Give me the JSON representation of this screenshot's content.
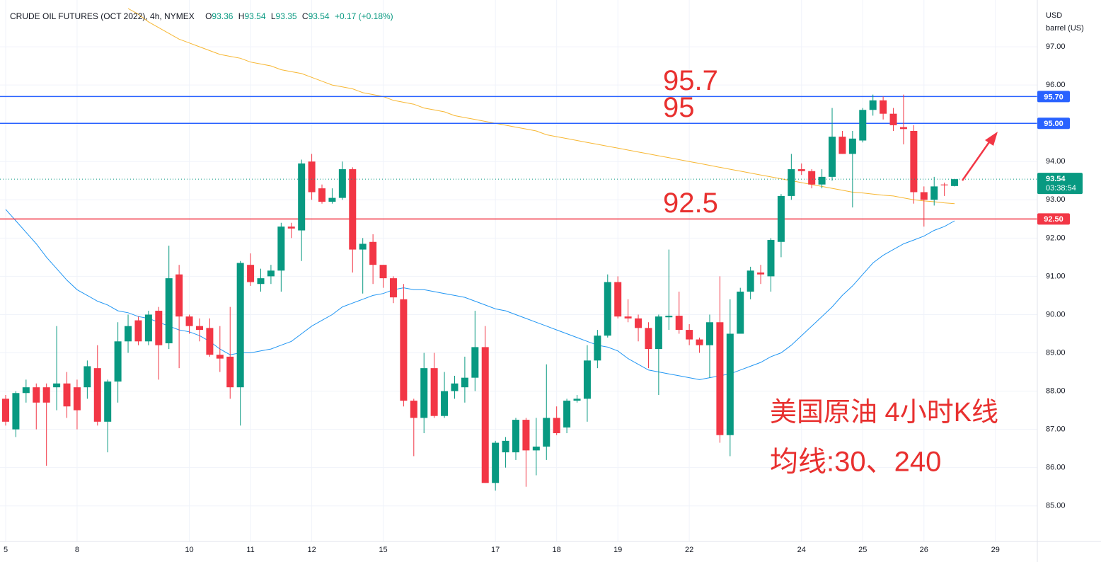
{
  "chart_data": {
    "type": "candlestick",
    "title": "CRUDE OIL FUTURES (OCT 2022), 4h, NYMEX",
    "legend": [
      {
        "label": "O",
        "value": "93.36"
      },
      {
        "label": "H",
        "value": "93.54"
      },
      {
        "label": "L",
        "value": "93.35"
      },
      {
        "label": "C",
        "value": "93.54"
      }
    ],
    "change": "+0.17 (+0.18%)",
    "y_unit": [
      "USD",
      "barrel (US)"
    ],
    "categories": [
      "5",
      null,
      null,
      null,
      null,
      null,
      null,
      "8",
      null,
      null,
      null,
      null,
      null,
      null,
      null,
      null,
      null,
      null,
      "10",
      null,
      null,
      null,
      null,
      null,
      "11",
      null,
      null,
      null,
      null,
      null,
      "12",
      null,
      null,
      null,
      null,
      null,
      null,
      "15",
      null,
      null,
      null,
      null,
      null,
      null,
      null,
      null,
      null,
      null,
      "17",
      null,
      null,
      null,
      null,
      null,
      "18",
      null,
      null,
      null,
      null,
      null,
      "19",
      null,
      null,
      null,
      null,
      null,
      null,
      "22",
      null,
      null,
      null,
      null,
      null,
      null,
      null,
      null,
      null,
      null,
      "24",
      null,
      null,
      null,
      null,
      null,
      "25",
      null,
      null,
      null,
      null,
      null,
      "26",
      null,
      null,
      null,
      null,
      null,
      null,
      "29",
      null,
      null,
      null
    ],
    "open": [
      87.8,
      87.0,
      87.95,
      88.1,
      88.1,
      88.1,
      88.2,
      88.1,
      88.1,
      88.6,
      87.2,
      88.25,
      89.3,
      89.85,
      89.3,
      90.1,
      89.25,
      91.05,
      89.95,
      89.7,
      89.65,
      88.95,
      88.9,
      88.1,
      91.3,
      90.8,
      91.0,
      91.15,
      92.3,
      92.2,
      94.0,
      93.3,
      92.95,
      93.05,
      93.8,
      91.7,
      91.9,
      91.3,
      90.95,
      90.4,
      87.75,
      87.3,
      88.6,
      87.35,
      88.0,
      88.1,
      88.35,
      89.15,
      85.6,
      86.4,
      86.4,
      87.25,
      86.45,
      86.55,
      87.3,
      87.05,
      87.75,
      87.8,
      88.8,
      89.45,
      90.85,
      89.95,
      89.9,
      89.65,
      89.1,
      89.93,
      89.97,
      89.6,
      89.35,
      89.2,
      89.8,
      86.85,
      89.5,
      90.6,
      91.1,
      91.0,
      91.9,
      93.1,
      93.8,
      93.75,
      93.4,
      93.6,
      94.65,
      94.2,
      94.55,
      95.35,
      95.6,
      95.25,
      94.9,
      94.8,
      93.2,
      93.0,
      93.4,
      93.36,
      null,
      null,
      null,
      null,
      null,
      null,
      null
    ],
    "high": [
      87.9,
      88.0,
      88.3,
      88.2,
      88.2,
      89.7,
      88.5,
      88.3,
      88.8,
      89.2,
      88.3,
      89.8,
      90.0,
      89.95,
      90.1,
      90.2,
      91.8,
      91.3,
      90.0,
      89.9,
      89.9,
      89.7,
      90.2,
      91.4,
      91.6,
      91.2,
      91.3,
      92.4,
      92.4,
      94.05,
      94.2,
      93.4,
      93.3,
      94.0,
      93.85,
      92.0,
      92.1,
      91.3,
      91.0,
      90.8,
      87.8,
      89.0,
      89.0,
      88.5,
      88.4,
      88.9,
      90.1,
      89.7,
      86.7,
      86.8,
      87.3,
      87.3,
      87.3,
      88.7,
      87.6,
      87.8,
      87.9,
      89.2,
      89.6,
      91.05,
      91.0,
      90.4,
      90.0,
      89.8,
      90.0,
      91.7,
      90.6,
      89.75,
      89.4,
      90.0,
      91.0,
      90.4,
      90.7,
      91.25,
      91.3,
      92.0,
      93.15,
      94.2,
      93.95,
      93.8,
      93.8,
      95.4,
      94.8,
      94.8,
      95.4,
      95.75,
      95.7,
      95.4,
      95.75,
      94.95,
      93.35,
      93.6,
      93.45,
      93.54,
      null,
      null,
      null,
      null,
      null,
      null,
      null
    ],
    "low": [
      87.1,
      86.8,
      87.7,
      87.0,
      86.05,
      87.5,
      87.3,
      87.0,
      87.8,
      87.1,
      86.4,
      87.7,
      89.0,
      89.2,
      89.2,
      88.3,
      89.1,
      88.6,
      89.5,
      89.3,
      88.9,
      88.5,
      87.8,
      87.1,
      90.75,
      90.6,
      90.8,
      90.6,
      92.0,
      91.4,
      93.0,
      92.9,
      92.9,
      93.0,
      91.1,
      90.55,
      90.8,
      90.7,
      90.3,
      87.6,
      86.3,
      86.9,
      87.3,
      87.3,
      87.8,
      87.7,
      88.0,
      85.6,
      85.4,
      86.0,
      86.2,
      85.5,
      85.8,
      86.2,
      86.85,
      86.9,
      87.7,
      87.2,
      88.6,
      89.4,
      89.9,
      89.8,
      89.3,
      88.6,
      87.9,
      89.6,
      89.5,
      89.2,
      89.0,
      88.35,
      86.65,
      86.3,
      89.5,
      90.4,
      90.8,
      90.6,
      91.5,
      93.0,
      93.65,
      93.3,
      93.3,
      93.5,
      94.2,
      92.8,
      94.5,
      95.2,
      95.1,
      94.8,
      94.45,
      92.9,
      92.3,
      92.85,
      93.1,
      93.35,
      null,
      null,
      null,
      null,
      null,
      null,
      null
    ],
    "close": [
      87.2,
      87.95,
      88.1,
      87.7,
      87.7,
      88.2,
      87.6,
      87.5,
      88.65,
      87.2,
      88.25,
      89.3,
      89.7,
      89.3,
      90.0,
      89.2,
      90.95,
      89.95,
      89.7,
      89.6,
      88.95,
      88.85,
      88.1,
      91.35,
      90.85,
      90.95,
      91.15,
      92.3,
      92.25,
      93.95,
      93.2,
      92.95,
      93.05,
      93.8,
      91.7,
      91.85,
      91.3,
      90.95,
      90.45,
      87.75,
      87.3,
      88.6,
      87.35,
      88.0,
      88.2,
      88.35,
      89.15,
      85.6,
      86.65,
      86.7,
      87.25,
      86.45,
      86.55,
      87.3,
      86.9,
      87.75,
      87.8,
      88.8,
      89.45,
      90.85,
      89.95,
      89.9,
      89.65,
      89.1,
      89.95,
      89.97,
      89.6,
      89.35,
      89.2,
      89.8,
      86.85,
      89.5,
      90.6,
      91.15,
      91.05,
      91.95,
      93.1,
      93.8,
      93.75,
      93.4,
      93.6,
      94.65,
      94.2,
      94.6,
      95.35,
      95.6,
      95.25,
      94.95,
      94.85,
      93.2,
      93.0,
      93.35,
      93.38,
      93.54,
      null,
      null,
      null,
      null,
      null,
      null,
      null
    ],
    "up_color": "#089981",
    "down_color": "#f23645",
    "lines": [
      {
        "color": "#f7b733",
        "values": [
          null,
          null,
          null,
          null,
          null,
          null,
          null,
          null,
          null,
          null,
          null,
          null,
          98.0,
          97.85,
          97.65,
          97.5,
          97.35,
          97.2,
          97.1,
          97.0,
          96.9,
          96.8,
          96.75,
          96.7,
          96.6,
          96.55,
          96.5,
          96.4,
          96.35,
          96.3,
          96.2,
          96.1,
          96.0,
          95.95,
          95.9,
          95.8,
          95.75,
          95.7,
          95.6,
          95.55,
          95.5,
          95.4,
          95.35,
          95.3,
          95.2,
          95.15,
          95.1,
          95.05,
          95.0,
          94.95,
          94.9,
          94.85,
          94.8,
          94.7,
          94.65,
          94.6,
          94.55,
          94.5,
          94.45,
          94.4,
          94.35,
          94.3,
          94.25,
          94.2,
          94.15,
          94.1,
          94.05,
          94.0,
          93.95,
          93.9,
          93.85,
          93.8,
          93.75,
          93.7,
          93.65,
          93.6,
          93.55,
          93.5,
          93.45,
          93.4,
          93.35,
          93.3,
          93.25,
          93.2,
          93.18,
          93.15,
          93.12,
          93.1,
          93.05,
          93.0,
          92.97,
          92.95,
          92.92,
          92.9,
          null,
          null,
          null,
          null,
          null,
          null,
          null
        ]
      },
      {
        "color": "#2196f3",
        "values": [
          92.75,
          92.45,
          92.15,
          91.85,
          91.5,
          91.2,
          90.9,
          90.65,
          90.5,
          90.35,
          90.25,
          90.1,
          90.05,
          89.95,
          89.9,
          89.8,
          89.7,
          89.6,
          89.55,
          89.45,
          89.3,
          89.1,
          88.95,
          89.0,
          89.0,
          89.05,
          89.1,
          89.2,
          89.3,
          89.5,
          89.7,
          89.85,
          90.0,
          90.2,
          90.3,
          90.4,
          90.5,
          90.55,
          90.65,
          90.7,
          90.65,
          90.65,
          90.6,
          90.55,
          90.5,
          90.45,
          90.35,
          90.25,
          90.15,
          90.1,
          90.0,
          89.9,
          89.8,
          89.7,
          89.6,
          89.5,
          89.4,
          89.3,
          89.2,
          89.15,
          89.05,
          88.85,
          88.7,
          88.55,
          88.5,
          88.45,
          88.4,
          88.35,
          88.3,
          88.35,
          88.4,
          88.45,
          88.55,
          88.65,
          88.75,
          88.9,
          89.0,
          89.2,
          89.45,
          89.7,
          89.95,
          90.2,
          90.5,
          90.75,
          91.05,
          91.35,
          91.55,
          91.7,
          91.85,
          91.95,
          92.05,
          92.2,
          92.3,
          92.45,
          null,
          null,
          null,
          null,
          null,
          null,
          null
        ]
      }
    ],
    "hlines": [
      {
        "value": 95.7,
        "label": "95.70",
        "text": "95.7",
        "color": "#2962ff"
      },
      {
        "value": 95,
        "label": "95.00",
        "text": "95",
        "color": "#2962ff"
      },
      {
        "value": 92.5,
        "label": "92.50",
        "text": "92.5",
        "color": "#f23645"
      }
    ],
    "last_price": {
      "value": 93.54,
      "label": "93.54",
      "countdown": "03:38:54",
      "color": "#089981"
    },
    "annotations": [
      "美国原油 4小时K线",
      "均线:30、240"
    ],
    "ylim": [
      84.07,
      98.13
    ],
    "yticks": [
      {
        "value": 85,
        "label": "85.00"
      },
      {
        "value": 86,
        "label": "86.00"
      },
      {
        "value": 87,
        "label": "87.00"
      },
      {
        "value": 88,
        "label": "88.00"
      },
      {
        "value": 89,
        "label": "89.00"
      },
      {
        "value": 90,
        "label": "90.00"
      },
      {
        "value": 91,
        "label": "91.00"
      },
      {
        "value": 92,
        "label": "92.00"
      },
      {
        "value": 93,
        "label": "93.00"
      },
      {
        "value": 94,
        "label": "94.00"
      },
      {
        "value": 95,
        "label": "95.00"
      },
      {
        "value": 96,
        "label": "96.00"
      },
      {
        "value": 97,
        "label": "97.00"
      }
    ],
    "grid": true
  }
}
